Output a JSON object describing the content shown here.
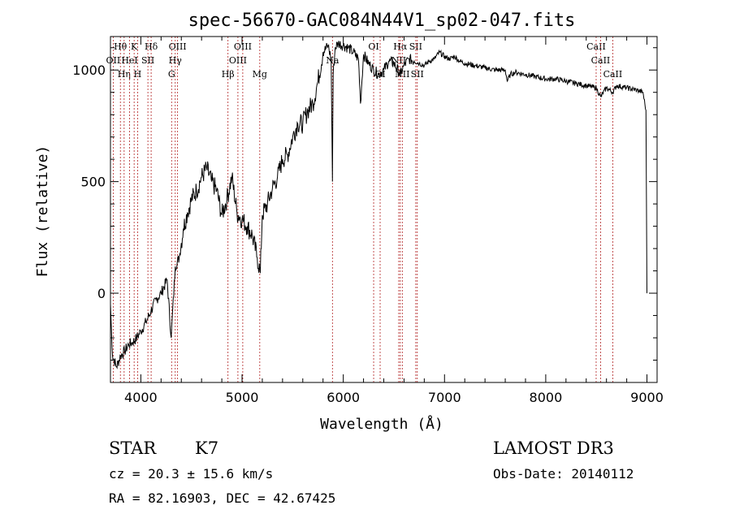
{
  "chart_data": {
    "type": "line",
    "title": "spec-56670-GAC084N44V1_sp02-047.fits",
    "xlabel": "Wavelength (Å)",
    "ylabel": "Flux (relative)",
    "xlim": [
      3700,
      9100
    ],
    "ylim": [
      -400,
      1150
    ],
    "x_ticks": [
      4000,
      5000,
      6000,
      7000,
      8000,
      9000
    ],
    "x_tick_labels": [
      "4000",
      "5000",
      "6000",
      "7000",
      "8000",
      "9000"
    ],
    "y_ticks": [
      0,
      500,
      1000
    ],
    "y_tick_labels": [
      "0",
      "500",
      "1000"
    ],
    "grid": false,
    "legend": "none",
    "line_color": "#000000",
    "marker_color": "#b22222",
    "series": [
      {
        "name": "flux",
        "x": [
          3700,
          3720,
          3760,
          3800,
          3840,
          3880,
          3920,
          3960,
          4000,
          4050,
          4100,
          4150,
          4200,
          4260,
          4300,
          4340,
          4380,
          4420,
          4460,
          4500,
          4550,
          4600,
          4650,
          4700,
          4750,
          4800,
          4850,
          4900,
          4950,
          5000,
          5050,
          5100,
          5150,
          5180,
          5200,
          5250,
          5300,
          5350,
          5400,
          5450,
          5500,
          5550,
          5600,
          5650,
          5700,
          5750,
          5800,
          5850,
          5880,
          5893,
          5900,
          5920,
          5950,
          6000,
          6050,
          6100,
          6150,
          6170,
          6200,
          6250,
          6300,
          6350,
          6400,
          6450,
          6500,
          6563,
          6600,
          6650,
          6700,
          6750,
          6800,
          6850,
          6900,
          6950,
          7000,
          7050,
          7100,
          7150,
          7200,
          7300,
          7400,
          7500,
          7600,
          7620,
          7650,
          7700,
          7800,
          7900,
          8000,
          8100,
          8200,
          8300,
          8400,
          8500,
          8542,
          8600,
          8662,
          8700,
          8800,
          8900,
          8960,
          8990,
          9000
        ],
        "y": [
          -50,
          -280,
          -330,
          -280,
          -260,
          -230,
          -220,
          -200,
          -170,
          -130,
          -80,
          -30,
          0,
          60,
          -200,
          120,
          160,
          290,
          360,
          420,
          460,
          520,
          560,
          500,
          460,
          350,
          420,
          520,
          360,
          330,
          300,
          260,
          160,
          90,
          350,
          400,
          470,
          520,
          600,
          620,
          700,
          760,
          760,
          820,
          850,
          950,
          1080,
          1110,
          1050,
          500,
          980,
          1100,
          1120,
          1110,
          1100,
          1080,
          1050,
          850,
          1070,
          1030,
          1000,
          980,
          1000,
          1040,
          1030,
          980,
          1020,
          1050,
          1040,
          1030,
          1020,
          1040,
          1050,
          1080,
          1060,
          1050,
          1060,
          1040,
          1030,
          1020,
          1010,
          1000,
          1000,
          950,
          980,
          990,
          980,
          970,
          960,
          960,
          950,
          940,
          930,
          920,
          880,
          920,
          900,
          930,
          920,
          910,
          900,
          820,
          0
        ]
      }
    ],
    "line_markers": [
      {
        "label": "Hθ",
        "wavelength": 3798,
        "row": 0
      },
      {
        "label": "OII",
        "wavelength": 3727,
        "row": 1
      },
      {
        "label": "Hη",
        "wavelength": 3835,
        "row": 2
      },
      {
        "label": "HeI",
        "wavelength": 3889,
        "row": 1
      },
      {
        "label": "K",
        "wavelength": 3934,
        "row": 0
      },
      {
        "label": "H",
        "wavelength": 3968,
        "row": 2
      },
      {
        "label": "SII",
        "wavelength": 4070,
        "row": 1
      },
      {
        "label": "Hδ",
        "wavelength": 4102,
        "row": 0
      },
      {
        "label": "G",
        "wavelength": 4304,
        "row": 2
      },
      {
        "label": "Hγ",
        "wavelength": 4340,
        "row": 1
      },
      {
        "label": "OIII",
        "wavelength": 4363,
        "row": 0
      },
      {
        "label": "Hβ",
        "wavelength": 4861,
        "row": 2
      },
      {
        "label": "OIII",
        "wavelength": 4959,
        "row": 1
      },
      {
        "label": "OIII",
        "wavelength": 5007,
        "row": 0
      },
      {
        "label": "Mg",
        "wavelength": 5175,
        "row": 2
      },
      {
        "label": "Na",
        "wavelength": 5893,
        "row": 1
      },
      {
        "label": "OI",
        "wavelength": 6300,
        "row": 0
      },
      {
        "label": "OI",
        "wavelength": 6364,
        "row": 2
      },
      {
        "label": "NII",
        "wavelength": 6548,
        "row": 1
      },
      {
        "label": "Hα",
        "wavelength": 6563,
        "row": 0
      },
      {
        "label": "NII",
        "wavelength": 6583,
        "row": 2
      },
      {
        "label": "SII",
        "wavelength": 6716,
        "row": 0
      },
      {
        "label": "SII",
        "wavelength": 6731,
        "row": 2
      },
      {
        "label": "CaII",
        "wavelength": 8498,
        "row": 0
      },
      {
        "label": "CaII",
        "wavelength": 8542,
        "row": 1
      },
      {
        "label": "CaII",
        "wavelength": 8662,
        "row": 2
      }
    ]
  },
  "info": {
    "object_class": "STAR",
    "subclass": "K7",
    "cz": "cz = 20.3 ± 15.6 km/s",
    "coords": "RA =  82.16903, DEC =  42.67425",
    "survey": "LAMOST DR3",
    "obs_date": "Obs-Date: 20140112"
  }
}
